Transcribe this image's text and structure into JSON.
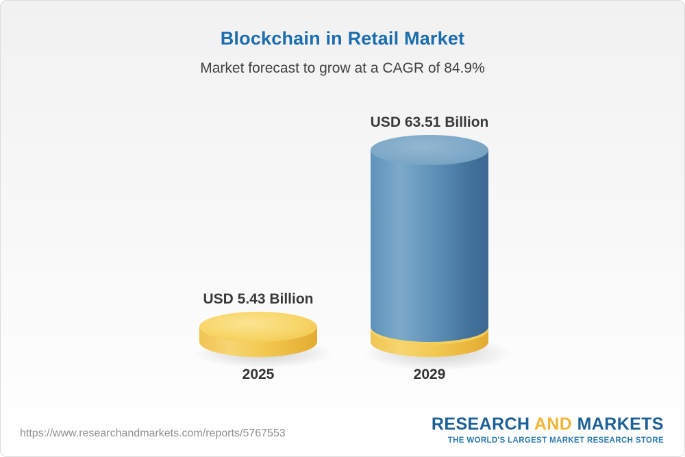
{
  "header": {
    "title": "Blockchain in Retail Market",
    "subtitle": "Market forecast to grow at a CAGR of 84.9%"
  },
  "chart_data": {
    "type": "bar",
    "variant": "3d-cylinder",
    "title": "Blockchain in Retail Market",
    "subtitle": "Market forecast to grow at a CAGR of 84.9%",
    "categories": [
      "2025",
      "2029"
    ],
    "values": [
      5.43,
      63.51
    ],
    "value_labels": [
      "USD 5.43 Billion",
      "USD 63.51 Billion"
    ],
    "unit": "USD Billion",
    "cagr_percent": 84.9,
    "bar_colors": [
      "#F2C84F",
      "#4E85AE"
    ],
    "ylim": [
      0,
      70
    ],
    "grid": false,
    "legend": "none"
  },
  "footer": {
    "url": "https://www.researchandmarkets.com/reports/5767553",
    "logo": {
      "word1": "RESEARCH",
      "word2": "AND",
      "word3": "MARKETS",
      "tagline": "THE WORLD'S LARGEST MARKET RESEARCH STORE"
    }
  },
  "colors": {
    "title_blue": "#1B6DAD",
    "subtitle_gray": "#404040",
    "bar_yellow": "#F2C84F",
    "bar_blue": "#4E85AE",
    "logo_blue": "#1D6096",
    "logo_gold": "#F2B535"
  }
}
